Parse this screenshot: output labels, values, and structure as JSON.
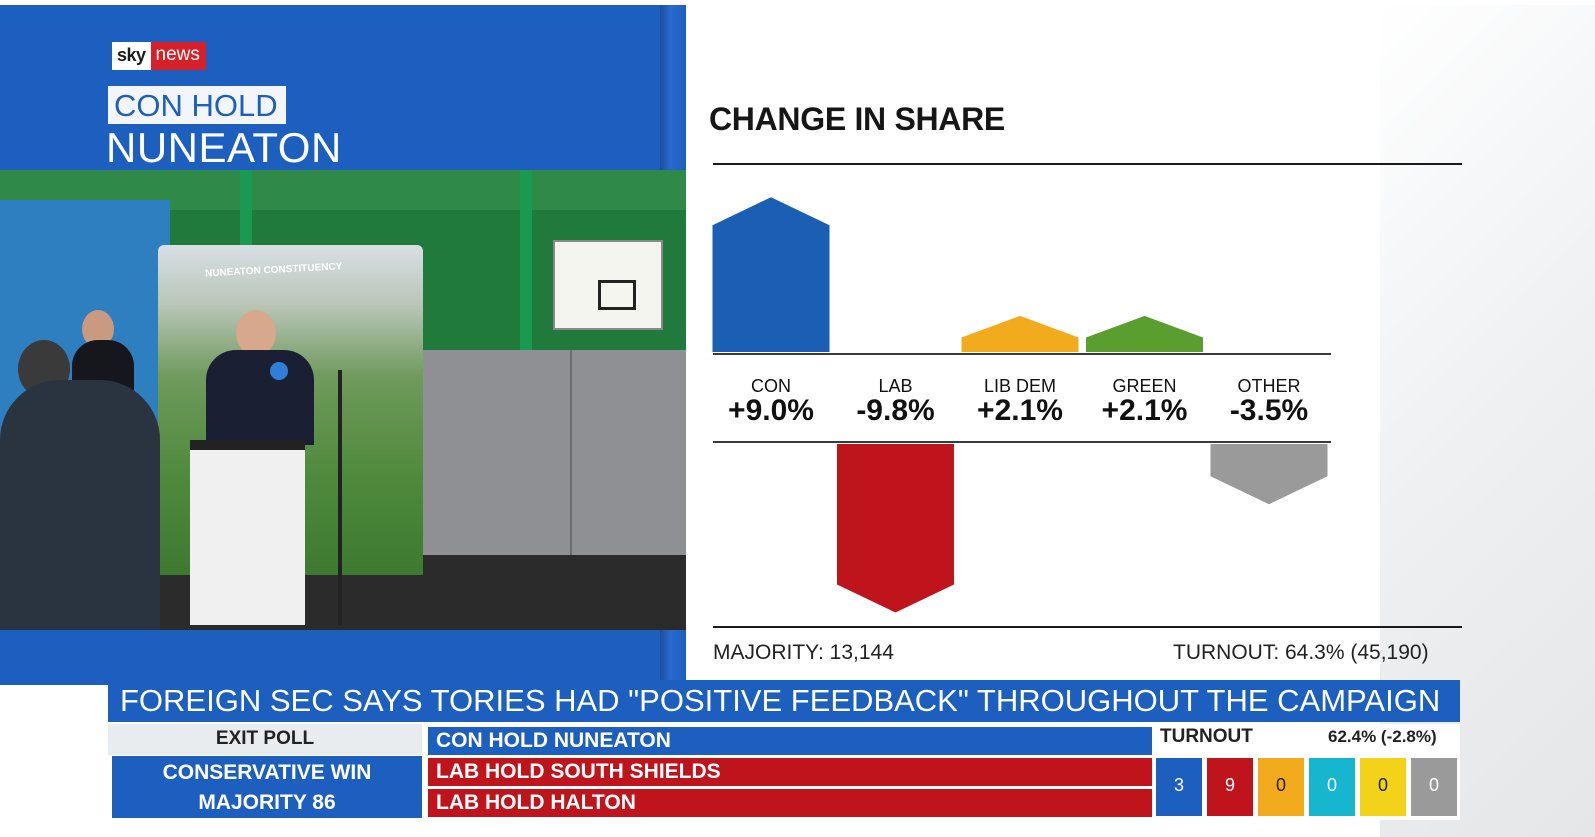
{
  "broadcaster": {
    "logo_sky": "sky",
    "logo_news": "news"
  },
  "result": {
    "tag": "CON HOLD",
    "seat": "NUNEATON"
  },
  "video": {
    "banner_text": "NUNEATON CONSTITUENCY"
  },
  "chart_data": {
    "type": "bar",
    "title": "CHANGE IN SHARE",
    "categories": [
      "CON",
      "LAB",
      "LIB DEM",
      "GREEN",
      "OTHER"
    ],
    "values": [
      9.0,
      -9.8,
      2.1,
      2.1,
      -3.5
    ],
    "value_labels": [
      "+9.0%",
      "-9.8%",
      "+2.1%",
      "+2.1%",
      "-3.5%"
    ],
    "colors": [
      "#1a5fb4",
      "#c0141c",
      "#f2ab1d",
      "#5a9e2f",
      "#9a9a9a"
    ],
    "ylim": [
      -10,
      10
    ],
    "grid": false,
    "xlabel": "",
    "ylabel": ""
  },
  "footer": {
    "majority": "MAJORITY: 13,144",
    "turnout": "TURNOUT: 64.3% (45,190)"
  },
  "ticker": {
    "headline": "FOREIGN SEC SAYS TORIES HAD \"POSITIVE FEEDBACK\" THROUGHOUT THE CAMPAIGN",
    "exit_poll_label": "EXIT POLL",
    "exit_poll_line1": "CONSERVATIVE WIN",
    "exit_poll_line2": "MAJORITY 86",
    "results": [
      {
        "text": "CON HOLD NUNEATON",
        "color": "#1d5fbf"
      },
      {
        "text": "LAB HOLD SOUTH SHIELDS",
        "color": "#c0141c"
      },
      {
        "text": "LAB HOLD HALTON",
        "color": "#c0141c"
      }
    ],
    "turnout_label": "TURNOUT",
    "turnout_value": "62.4% (-2.8%)",
    "tallies": [
      {
        "value": "3",
        "color": "#1d5fbf",
        "text_color": "#ffffff"
      },
      {
        "value": "9",
        "color": "#c0141c",
        "text_color": "#ffffff"
      },
      {
        "value": "0",
        "color": "#f2ab1d",
        "text_color": "#222222"
      },
      {
        "value": "0",
        "color": "#17b6cf",
        "text_color": "#ffffff"
      },
      {
        "value": "0",
        "color": "#f3d21a",
        "text_color": "#222222"
      },
      {
        "value": "0",
        "color": "#9a9a9a",
        "text_color": "#ffffff"
      }
    ]
  }
}
